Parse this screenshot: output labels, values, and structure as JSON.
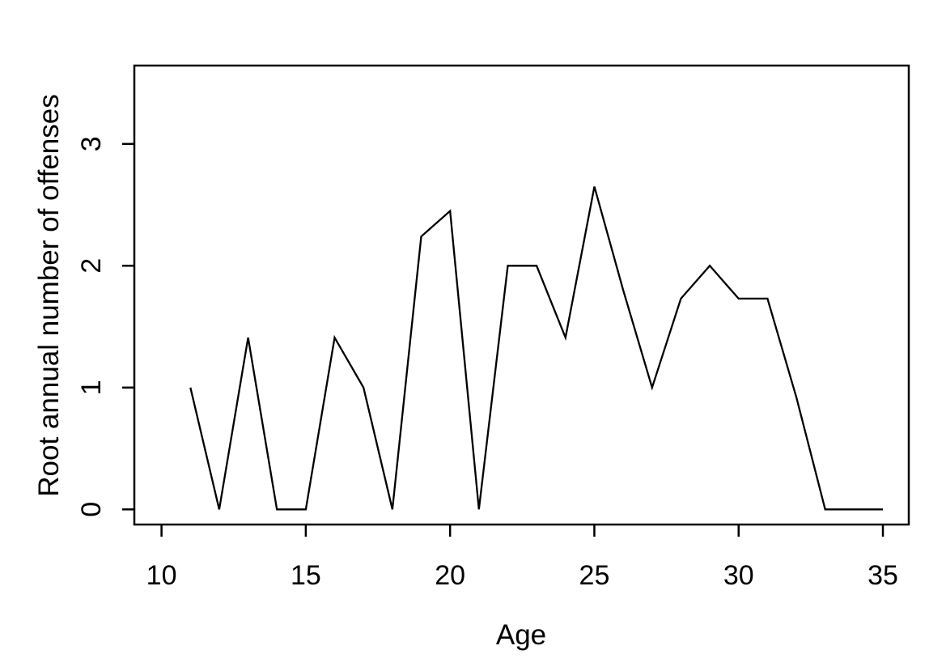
{
  "figure": {
    "background_color": "#ffffff",
    "line_color": "#000000",
    "text_color": "#000000"
  },
  "chart_data": {
    "type": "line",
    "title": "",
    "xlabel": "Age",
    "ylabel": "Root annual number of offenses",
    "x": [
      11,
      12,
      13,
      14,
      15,
      16,
      17,
      18,
      19,
      20,
      21,
      22,
      23,
      24,
      25,
      26,
      27,
      28,
      29,
      30,
      31,
      32,
      33,
      34,
      35
    ],
    "y": [
      1.0,
      0,
      1.41,
      0,
      0,
      1.41,
      1.0,
      0,
      2.24,
      2.45,
      0,
      2.0,
      2.0,
      1.41,
      2.65,
      1.8,
      1.0,
      1.73,
      2.0,
      1.73,
      1.73,
      0.92,
      0,
      0,
      0
    ],
    "x_ticks": [
      10,
      15,
      20,
      25,
      30,
      35
    ],
    "y_ticks": [
      0,
      1,
      2,
      3
    ],
    "xlim": [
      9.1,
      35.9
    ],
    "ylim": [
      -0.13,
      3.64
    ],
    "grid": false,
    "legend": "none",
    "series_name": "Root annual number of offenses",
    "style": "R base plot, black line on white, open box frame"
  }
}
